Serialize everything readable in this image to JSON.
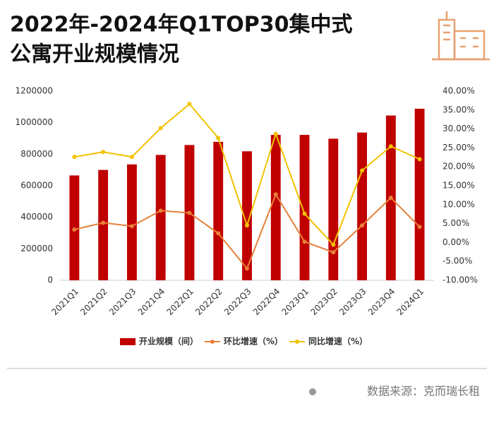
{
  "chart_data": {
    "type": "bar_line",
    "title": "2022年-2024年Q1TOP30集中式",
    "subtitle": "公寓开业规模情况",
    "source": "数据来源：克而瑞长租",
    "categories": [
      "2021Q1",
      "2021Q2",
      "2021Q3",
      "2021Q4",
      "2022Q1",
      "2022Q2",
      "2022Q3",
      "2022Q4",
      "2023Q1",
      "2023Q2",
      "2023Q3",
      "2023Q4",
      "2024Q1"
    ],
    "series": [
      {
        "name": "开业规模（间）",
        "type": "bar",
        "color": "#c00000",
        "values": [
          665000,
          700000,
          735000,
          795000,
          858000,
          878000,
          818000,
          922000,
          922000,
          898000,
          937000,
          1045000,
          1088000
        ]
      },
      {
        "name": "环比增速（%）",
        "type": "line",
        "axis": "y2",
        "color": "#e8803a",
        "values": [
          3.4,
          5.2,
          4.3,
          8.4,
          7.8,
          2.4,
          -6.9,
          12.7,
          0.2,
          -2.6,
          4.5,
          11.8,
          4.1
        ]
      },
      {
        "name": "同比增速（%）",
        "type": "line",
        "axis": "y2",
        "color": "#f2c200",
        "values": [
          22.6,
          23.9,
          22.6,
          30.2,
          36.6,
          27.6,
          4.5,
          28.7,
          7.6,
          -0.6,
          19.0,
          25.4,
          22.0
        ]
      }
    ],
    "ylim": [
      0,
      1200000
    ],
    "yticks": [
      0,
      200000,
      400000,
      600000,
      800000,
      1000000,
      1200000
    ],
    "y2lim": [
      -10,
      40
    ],
    "y2ticks": [
      {
        "value": -10,
        "label": "-10.00%"
      },
      {
        "value": -5,
        "label": "-5.00%"
      },
      {
        "value": 0,
        "label": "0.00%"
      },
      {
        "value": 5,
        "label": "5.00%"
      },
      {
        "value": 10,
        "label": "10.00%"
      },
      {
        "value": 15,
        "label": "15.00%"
      },
      {
        "value": 20,
        "label": "20.00%"
      },
      {
        "value": 25,
        "label": "25.00%"
      },
      {
        "value": 30,
        "label": "30.00%"
      },
      {
        "value": 35,
        "label": "35.00%"
      },
      {
        "value": 40,
        "label": "40.00%"
      }
    ],
    "legend": "bottom"
  }
}
